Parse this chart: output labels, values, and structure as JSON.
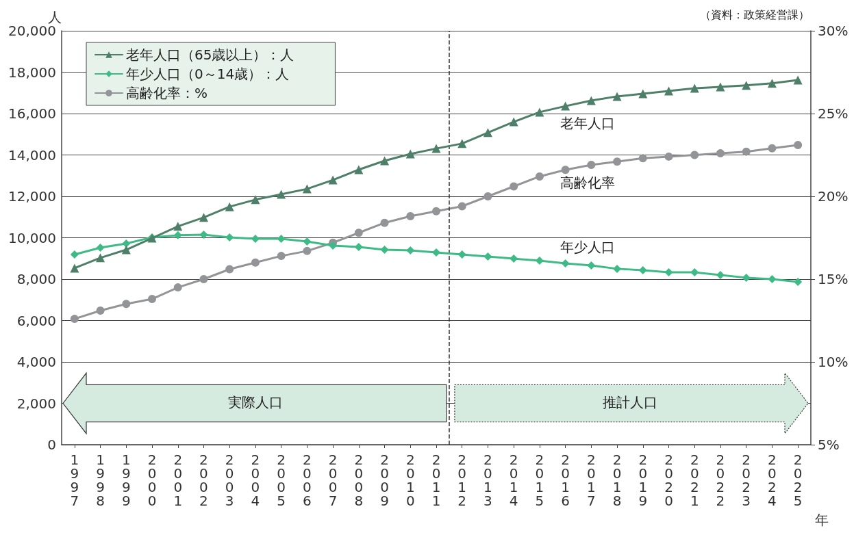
{
  "chart_data": {
    "type": "line",
    "ylabel": "人",
    "xlabel": "年",
    "x": [
      1997,
      1998,
      1999,
      2000,
      2001,
      2002,
      2003,
      2004,
      2005,
      2006,
      2007,
      2008,
      2009,
      2010,
      2011,
      2012,
      2013,
      2014,
      2015,
      2016,
      2017,
      2018,
      2019,
      2020,
      2021,
      2022,
      2023,
      2024,
      2025
    ],
    "xlim": [
      1996.5,
      2025.5
    ],
    "xticks": [
      1997,
      1998,
      1999,
      2000,
      2001,
      2002,
      2003,
      2004,
      2005,
      2006,
      2007,
      2008,
      2009,
      2010,
      2011,
      2012,
      2013,
      2014,
      2015,
      2016,
      2017,
      2018,
      2019,
      2020,
      2021,
      2022,
      2023,
      2024,
      2025
    ],
    "ylim": [
      0,
      20000
    ],
    "yticks": [
      {
        "value": 0,
        "label": "0"
      },
      {
        "value": 2000,
        "label": "2,000"
      },
      {
        "value": 4000,
        "label": "4,000"
      },
      {
        "value": 6000,
        "label": "6,000"
      },
      {
        "value": 8000,
        "label": "8,000"
      },
      {
        "value": 10000,
        "label": "10,000"
      },
      {
        "value": 12000,
        "label": "12,000"
      },
      {
        "value": 14000,
        "label": "14,000"
      },
      {
        "value": 16000,
        "label": "16,000"
      },
      {
        "value": 18000,
        "label": "18,000"
      },
      {
        "value": 20000,
        "label": "20,000"
      }
    ],
    "y2lim": [
      5,
      30
    ],
    "y2ticks": [
      {
        "value": 5,
        "label": "5%"
      },
      {
        "value": 10,
        "label": "10%"
      },
      {
        "value": 15,
        "label": "15%"
      },
      {
        "value": 20,
        "label": "20%"
      },
      {
        "value": 25,
        "label": "25%"
      },
      {
        "value": 30,
        "label": "30%"
      }
    ],
    "series": [
      {
        "name": "老年人口（65歳以上）：人",
        "color": "#4e7f68",
        "marker": "triangle",
        "values": [
          8530,
          9030,
          9420,
          9980,
          10550,
          10980,
          11500,
          11840,
          12100,
          12360,
          12790,
          13290,
          13720,
          14050,
          14310,
          14550,
          15080,
          15600,
          16070,
          16360,
          16630,
          16830,
          16960,
          17090,
          17220,
          17290,
          17360,
          17460,
          17620
        ]
      },
      {
        "name": "年少人口（0～14歳）：人",
        "color": "#3dba86",
        "marker": "diamond",
        "values": [
          9190,
          9520,
          9720,
          10020,
          10120,
          10150,
          10020,
          9950,
          9950,
          9820,
          9620,
          9550,
          9420,
          9390,
          9290,
          9190,
          9090,
          8990,
          8890,
          8760,
          8660,
          8500,
          8430,
          8330,
          8330,
          8200,
          8070,
          8000,
          7870
        ]
      },
      {
        "name": "高齢化率：%",
        "color": "#939498",
        "marker": "circle",
        "axis": "y2",
        "values": [
          12.6,
          13.1,
          13.5,
          13.8,
          14.5,
          15.0,
          15.6,
          16.0,
          16.4,
          16.7,
          17.2,
          17.8,
          18.4,
          18.8,
          19.1,
          19.4,
          20.0,
          20.6,
          21.2,
          21.6,
          21.9,
          22.1,
          22.3,
          22.4,
          22.5,
          22.6,
          22.7,
          22.9,
          23.1
        ]
      }
    ],
    "annotations": [
      "（資料：政策経営課）",
      "老年人口",
      "高齢化率",
      "年少人口",
      "実際人口",
      "推計人口"
    ],
    "ref_lines": [
      {
        "axis": "x",
        "value": 2011.5,
        "color": "#333333",
        "line_style": "dashed"
      }
    ],
    "grid": "y",
    "legend": "top left",
    "line_style": "solid"
  }
}
